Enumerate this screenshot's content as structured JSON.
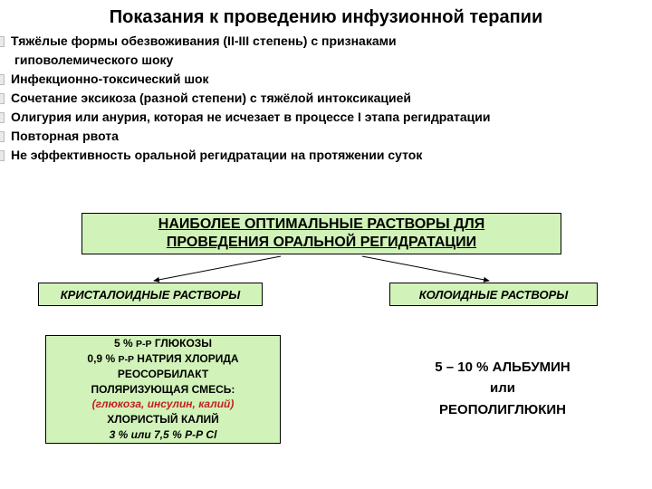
{
  "title": "Показания к проведению инфузионной терапии",
  "indications": [
    "Тяжёлые формы обезвоживания (II-III степень) с признаками",
    "_subгиповолемического шоку",
    "Инфекционно-токсический шок",
    "Сочетание эксикоза (разной степени)  с тяжёлой интоксикацией",
    "Олигурия или анурия, которая не  исчезает в процессе I этапа регидратации",
    "Повторная  рвота",
    "Не эффективность оральной регидратации на протяжении суток"
  ],
  "main_box_l1": "НАИБОЛЕЕ   ОПТИМАЛЬНЫЕ   РАСТВОРЫ   ДЛЯ",
  "main_box_l2": "ПРОВЕДЕНИЯ   ОРАЛЬНОЙ   РЕГИДРАТАЦИИ",
  "left_cat": "КРИСТАЛОИДНЫЕ   РАСТВОРЫ",
  "right_cat": "КОЛОИДНЫЕ   РАСТВОРЫ",
  "left_detail": {
    "l1a": "5 %  ",
    "l1b": "Р-Р",
    "l1c": "  ГЛЮКОЗЫ",
    "l2a": "0,9 %  ",
    "l2b": "Р-Р",
    "l2c": " НАТРИЯ  ХЛОРИДА",
    "l3": "РЕОСОРБИЛАКТ",
    "l4": "ПОЛЯРИЗУЮЩАЯ  СМЕСЬ:",
    "l5": "(глюкоза, инсулин, калий)",
    "l6": "ХЛОРИСТЫЙ КАЛИЙ",
    "l7": "3 % или 7,5 % Р-Р Cl"
  },
  "right_detail": {
    "l1": "5 – 10 %  АЛЬБУМИН",
    "l2": "или",
    "l3": "РЕОПОЛИГЛЮКИН"
  },
  "colors": {
    "box_bg": "#d1f3b9",
    "border": "#000000",
    "red_text": "#c41e1e",
    "arrow": "#000000"
  }
}
